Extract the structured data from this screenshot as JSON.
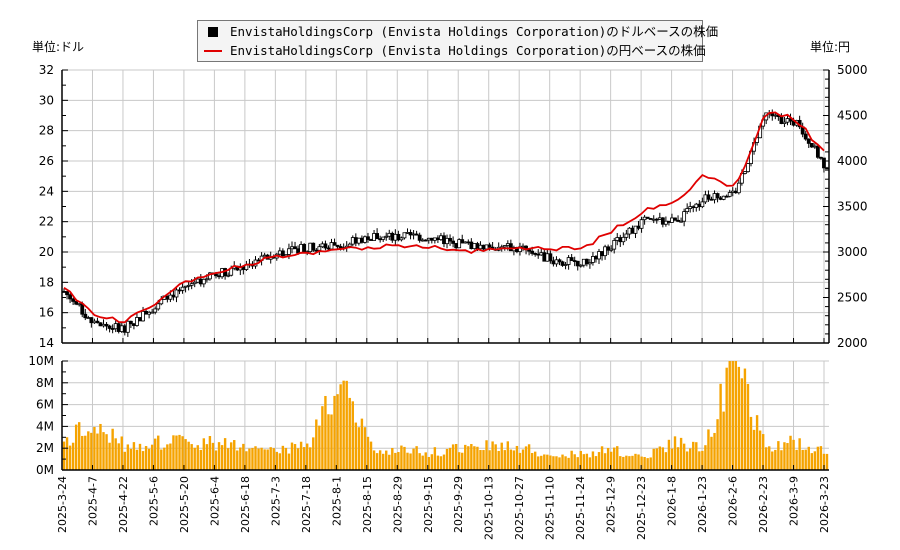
{
  "legend": {
    "usd_label": "EnvistaHoldingsCorp (Envista Holdings Corporation)のドルベースの株価",
    "jpy_label": "EnvistaHoldingsCorp (Envista Holdings Corporation)の円ベースの株価"
  },
  "axes": {
    "left_unit": "単位:ドル",
    "right_unit": "単位:円"
  },
  "colors": {
    "candle": "#000000",
    "jpy_line": "#e00000",
    "volume_bar": "#f5a300",
    "grid": "#c8c8c8"
  },
  "chart_data": [
    {
      "type": "candlestick+line",
      "title": "",
      "series": [
        {
          "name": "EnvistaHoldingsCorp (Envista Holdings Corporation)のドルベースの株価",
          "axis": "left",
          "style": "candlestick"
        },
        {
          "name": "EnvistaHoldingsCorp (Envista Holdings Corporation)の円ベースの株価",
          "axis": "right",
          "style": "line"
        }
      ],
      "ylabel_left": "単位:ドル",
      "ylabel_right": "単位:円",
      "ylim_left": [
        14,
        32
      ],
      "ylim_right": [
        2000,
        5000
      ],
      "yticks_left": [
        14,
        16,
        18,
        20,
        22,
        24,
        26,
        28,
        30,
        32
      ],
      "yticks_right": [
        2000,
        2500,
        3000,
        3500,
        4000,
        4500,
        5000
      ],
      "grid": true,
      "legend_position": "top-center",
      "x": [
        "2025-3-24",
        "2025-4-7",
        "2025-4-22",
        "2025-5-6",
        "2025-5-20",
        "2025-6-4",
        "2025-6-18",
        "2025-7-3",
        "2025-7-18",
        "2025-8-1",
        "2025-8-15",
        "2025-8-29",
        "2025-9-15",
        "2025-9-29",
        "2025-10-13",
        "2025-10-27",
        "2025-11-10",
        "2025-11-24",
        "2025-12-9",
        "2025-12-23",
        "2026-1-8",
        "2026-1-23",
        "2026-2-6",
        "2026-2-23",
        "2026-3-9",
        "2026-3-23"
      ],
      "usd_close_approx": [
        17.4,
        15.2,
        15.0,
        16.5,
        17.8,
        18.6,
        19.0,
        20.0,
        20.3,
        20.5,
        21.0,
        21.0,
        21.0,
        20.5,
        20.4,
        20.2,
        19.5,
        19.2,
        20.5,
        22.0,
        22.0,
        23.5,
        24.0,
        29.0,
        28.5,
        25.5
      ],
      "jpy_close_approx": [
        2620,
        2300,
        2230,
        2450,
        2680,
        2780,
        2860,
        2960,
        2990,
        3020,
        3060,
        3060,
        3060,
        3000,
        3020,
        3040,
        3030,
        3040,
        3250,
        3450,
        3550,
        3850,
        3700,
        4550,
        4460,
        4050
      ]
    },
    {
      "type": "bar",
      "title": "",
      "ylabel": "",
      "ylim": [
        0,
        10000000
      ],
      "yticks": [
        "0M",
        "2M",
        "4M",
        "6M",
        "8M",
        "10M"
      ],
      "grid": true,
      "x": [
        "2025-3-24",
        "2025-4-7",
        "2025-4-22",
        "2025-5-6",
        "2025-5-20",
        "2025-6-4",
        "2025-6-18",
        "2025-7-3",
        "2025-7-18",
        "2025-8-1",
        "2025-8-15",
        "2025-8-29",
        "2025-9-15",
        "2025-9-29",
        "2025-10-13",
        "2025-10-27",
        "2025-11-10",
        "2025-11-24",
        "2025-12-9",
        "2025-12-23",
        "2026-1-8",
        "2026-1-23",
        "2026-2-6",
        "2026-2-23",
        "2026-3-9",
        "2026-3-23"
      ],
      "values_M_approx": [
        2.7,
        4.2,
        2.2,
        2.5,
        2.6,
        2.5,
        2.2,
        2.0,
        2.4,
        8.0,
        2.3,
        1.8,
        1.6,
        1.9,
        2.2,
        2.0,
        1.5,
        1.4,
        2.0,
        1.1,
        2.6,
        2.1,
        10.0,
        2.2,
        2.5,
        1.8
      ],
      "peak_volume": "10M (2026-2-6)",
      "secondary_peak": "8M (2025-8-1)"
    }
  ]
}
